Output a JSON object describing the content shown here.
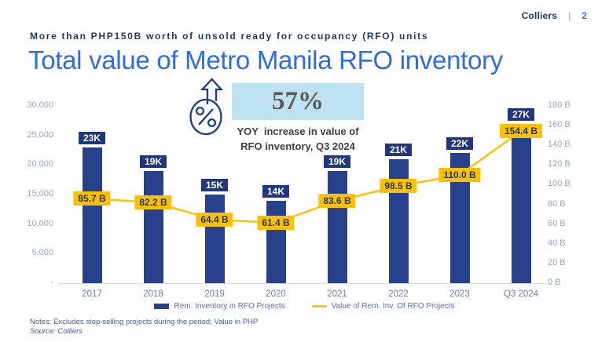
{
  "header": {
    "brand": "Colliers",
    "separator": "|",
    "page_number": "2"
  },
  "subtitle": "More than PHP150B worth of unsold ready for occupancy (RFO) units",
  "title": "Total value of Metro Manila RFO inventory",
  "highlight": {
    "value": "57%",
    "caption_line1": "YOY  increase in value of",
    "caption_line2": "RFO inventory, Q3 2024",
    "box_color": "#BFE2F0",
    "icon": "percent-increase-icon"
  },
  "chart_data": {
    "type": "combo",
    "title": "Total value of Metro Manila RFO inventory",
    "categories": [
      "2017",
      "2018",
      "2019",
      "2020",
      "2021",
      "2022",
      "2023",
      "Q3 2024"
    ],
    "series": [
      {
        "name": "Rem. Inventory in RFO Projects",
        "type": "bar",
        "axis": "left",
        "values": [
          23000,
          19000,
          15000,
          14000,
          19000,
          21000,
          22000,
          27000
        ],
        "labels": [
          "23K",
          "19K",
          "15K",
          "14K",
          "19K",
          "21K",
          "22K",
          "27K"
        ],
        "color": "#27418d"
      },
      {
        "name": "Value of Rem. Inv. Of RFO Projects",
        "type": "line",
        "axis": "right",
        "values": [
          85.7,
          82.2,
          64.4,
          61.4,
          83.6,
          98.5,
          110.0,
          154.4
        ],
        "labels": [
          "85.7 B",
          "82.2 B",
          "64.4 B",
          "61.4 B",
          "83.6 B",
          "98.5 B",
          "110.0 B",
          "154.4 B"
        ],
        "color": "#ffc000"
      }
    ],
    "left_axis": {
      "max": 30000,
      "ticks": [
        "30,000",
        "25,000",
        "20,000",
        "15,000",
        "10,000",
        "5,000",
        "-"
      ],
      "tick_values": [
        30000,
        25000,
        20000,
        15000,
        10000,
        5000,
        0
      ]
    },
    "right_axis": {
      "max": 180,
      "ticks": [
        "180 B",
        "160 B",
        "140 B",
        "120 B",
        "100 B",
        "80 B",
        "60 B",
        "40 B",
        "20 B",
        "0 B"
      ],
      "tick_values": [
        180,
        160,
        140,
        120,
        100,
        80,
        60,
        40,
        20,
        0
      ]
    },
    "grid": false,
    "legend_position": "bottom"
  },
  "notes": {
    "line1": "Notes: Excludes stop-selling projects during the period; Value in PHP",
    "line2": "Source: Colliers"
  },
  "colors": {
    "navy": "#1f3864",
    "bar": "#27418d",
    "bar_label_box": "#20387b",
    "line_yellow": "#ffc000",
    "title_blue": "#2e6ce0",
    "highlight_box": "#bfe2f0",
    "axis_text": "#9aa5c4"
  }
}
